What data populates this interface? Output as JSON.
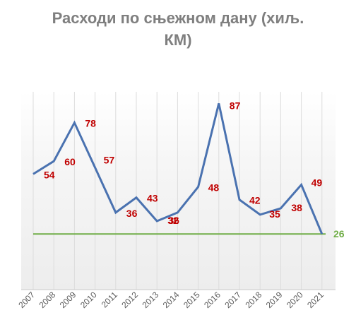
{
  "chart_data": {
    "type": "line",
    "title_lines": [
      "Расходи по сњежном дану (хиљ.",
      "КМ)"
    ],
    "categories": [
      "2007",
      "2008",
      "2009",
      "2010",
      "2011",
      "2012",
      "2013",
      "2014",
      "2015",
      "2016",
      "2017",
      "2018",
      "2019",
      "2020",
      "2021"
    ],
    "series": [
      {
        "values": [
          54,
          60,
          78,
          57,
          36,
          43,
          32,
          36,
          48,
          87,
          42,
          35,
          38,
          49,
          26
        ],
        "color": "#4a72b0"
      }
    ],
    "reference_line": {
      "value": 26,
      "label": "26",
      "color": "#70ad47"
    },
    "xlabel": "",
    "ylabel": "",
    "ylim": [
      0,
      100
    ],
    "label_color": "#c00000",
    "grid": "vertical",
    "legend": "none"
  }
}
